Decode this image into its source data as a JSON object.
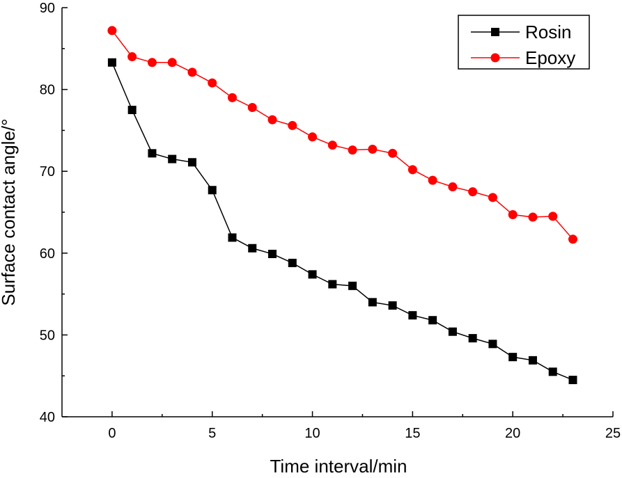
{
  "chart_data": {
    "type": "line",
    "title": "",
    "xlabel": "Time interval/min",
    "ylabel": "Surface contact angle/°",
    "xlim": [
      -2.5,
      25
    ],
    "ylim": [
      40,
      90
    ],
    "xticks": [
      0,
      5,
      10,
      15,
      20,
      25
    ],
    "xtick_labels": [
      "0",
      "5",
      "10",
      "15",
      "20",
      "25"
    ],
    "yticks": [
      40,
      50,
      60,
      70,
      80,
      90
    ],
    "ytick_labels": [
      "40",
      "50",
      "60",
      "70",
      "80",
      "90"
    ],
    "grid": false,
    "legend_position": "top-right",
    "x": [
      0,
      1,
      2,
      3,
      4,
      5,
      6,
      7,
      8,
      9,
      10,
      11,
      12,
      13,
      14,
      15,
      16,
      17,
      18,
      19,
      20,
      21,
      22,
      23
    ],
    "series": [
      {
        "name": "Rosin",
        "color": "#000000",
        "marker": "square",
        "values": [
          83.3,
          77.5,
          72.2,
          71.5,
          71.1,
          67.7,
          61.9,
          60.6,
          59.9,
          58.8,
          57.4,
          56.2,
          56.0,
          54.0,
          53.6,
          52.4,
          51.8,
          50.4,
          49.6,
          48.9,
          47.3,
          46.9,
          45.5,
          44.5
        ]
      },
      {
        "name": "Epoxy",
        "color": "#ff0000",
        "marker": "circle",
        "values": [
          87.2,
          84.0,
          83.3,
          83.3,
          82.1,
          80.8,
          79.0,
          77.8,
          76.3,
          75.6,
          74.2,
          73.2,
          72.6,
          72.7,
          72.2,
          70.2,
          68.9,
          68.1,
          67.5,
          66.8,
          64.7,
          64.4,
          64.5,
          61.7
        ]
      }
    ]
  }
}
